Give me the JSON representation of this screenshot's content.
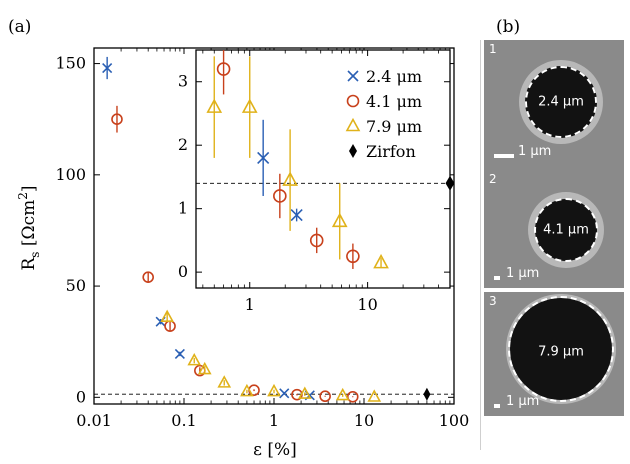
{
  "panel_a_label": "(a)",
  "panel_b_label": "(b)",
  "colors": {
    "s24": "#2a5fb4",
    "s41": "#c8411c",
    "s79": "#e0b21a",
    "zirfon": "#000000"
  },
  "chart_data": {
    "type": "scatter",
    "xlabel": "ε [%]",
    "ylabel_main": "R",
    "ylabel_sub": "s",
    "ylabel_unit": "[Ωcm",
    "ylabel_exp": "2",
    "ylabel_close": "]",
    "x_scale": "log",
    "xlim": [
      0.01,
      100
    ],
    "ylim": [
      -3,
      157
    ],
    "x_ticks": [
      {
        "v": 0.01,
        "label": "0.01"
      },
      {
        "v": 0.1,
        "label": "0.1"
      },
      {
        "v": 1,
        "label": "1"
      },
      {
        "v": 10,
        "label": "10"
      },
      {
        "v": 100,
        "label": "100"
      }
    ],
    "y_ticks": [
      {
        "v": 0,
        "label": "0"
      },
      {
        "v": 50,
        "label": "50"
      },
      {
        "v": 100,
        "label": "100"
      },
      {
        "v": 150,
        "label": "150"
      }
    ],
    "reference_line": 1.4,
    "series": [
      {
        "name": "2.4 μm",
        "marker": "x",
        "color": "#2a5fb4",
        "points": [
          [
            0.014,
            148,
            5
          ],
          [
            0.055,
            34,
            1.2
          ],
          [
            0.09,
            19.5,
            1
          ],
          [
            1.3,
            1.8,
            0.6
          ],
          [
            2.5,
            0.9,
            0.1
          ]
        ]
      },
      {
        "name": "4.1 μm",
        "marker": "o",
        "color": "#c8411c",
        "points": [
          [
            0.018,
            125,
            6
          ],
          [
            0.04,
            54,
            2
          ],
          [
            0.07,
            32,
            2.5
          ],
          [
            0.15,
            12,
            1.5
          ],
          [
            0.6,
            3.2,
            0.4
          ],
          [
            1.8,
            1.2,
            0.35
          ],
          [
            3.7,
            0.5,
            0.2
          ],
          [
            7.5,
            0.25,
            0.2
          ]
        ]
      },
      {
        "name": "7.9 μm",
        "marker": "^",
        "color": "#e0b21a",
        "points": [
          [
            0.065,
            36,
            2
          ],
          [
            0.13,
            16.5,
            1.2
          ],
          [
            0.17,
            12.5,
            1.5
          ],
          [
            0.28,
            6.5,
            1.2
          ],
          [
            0.5,
            2.6,
            0.8
          ],
          [
            1,
            2.6,
            0.8
          ],
          [
            2.2,
            1.45,
            0.8
          ],
          [
            5.8,
            0.8,
            0.6
          ],
          [
            13,
            0.15,
            0.07
          ]
        ]
      },
      {
        "name": "Zirfon",
        "marker": "D",
        "color": "#000000",
        "points": [
          [
            50,
            1.4,
            0
          ]
        ]
      }
    ],
    "inset": {
      "x_scale": "log",
      "xlim": [
        0.35,
        50
      ],
      "ylim": [
        -0.25,
        3.5
      ],
      "x_ticks": [
        {
          "v": 1,
          "label": "1"
        },
        {
          "v": 10,
          "label": "10"
        }
      ],
      "y_ticks": [
        {
          "v": 0,
          "label": "0"
        },
        {
          "v": 1,
          "label": "1"
        },
        {
          "v": 2,
          "label": "2"
        },
        {
          "v": 3,
          "label": "3"
        }
      ],
      "legend_position": "top-right"
    }
  },
  "images": [
    {
      "num": "1",
      "diameter": "2.4 μm",
      "scale": "1 μm"
    },
    {
      "num": "2",
      "diameter": "4.1 μm",
      "scale": "1 μm"
    },
    {
      "num": "3",
      "diameter": "7.9 μm",
      "scale": "1 μm"
    }
  ]
}
